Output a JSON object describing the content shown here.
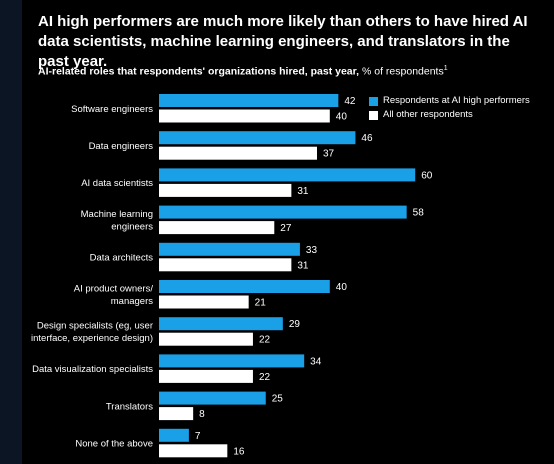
{
  "title": "AI high performers are much more likely than others to have hired AI data scientists, machine learning engineers, and translators in the past year.",
  "subtitle_bold": "AI-related roles that respondents' organizations hired, past year,",
  "subtitle_rest": " % of respondents",
  "subtitle_note": "1",
  "colors": {
    "high_performers": "#1aa0e6",
    "others": "#ffffff",
    "background": "#000000"
  },
  "chart_data": {
    "type": "bar",
    "orientation": "horizontal",
    "categories": [
      [
        "Software engineers"
      ],
      [
        "Data engineers"
      ],
      [
        "AI data scientists"
      ],
      [
        "Machine learning",
        "engineers"
      ],
      [
        "Data architects"
      ],
      [
        "AI product owners/",
        "managers"
      ],
      [
        "Design specialists (eg, user",
        "interface, experience design)"
      ],
      [
        "Data visualization specialists"
      ],
      [
        "Translators"
      ],
      [
        "None of the above"
      ]
    ],
    "series": [
      {
        "name": "Respondents at AI high performers",
        "values": [
          42,
          46,
          60,
          58,
          33,
          40,
          29,
          34,
          25,
          7
        ]
      },
      {
        "name": "All other respondents",
        "values": [
          40,
          37,
          31,
          27,
          31,
          21,
          22,
          22,
          8,
          16
        ]
      }
    ],
    "xlim": [
      0,
      60
    ],
    "grid": false,
    "legend_position": "top-right"
  }
}
